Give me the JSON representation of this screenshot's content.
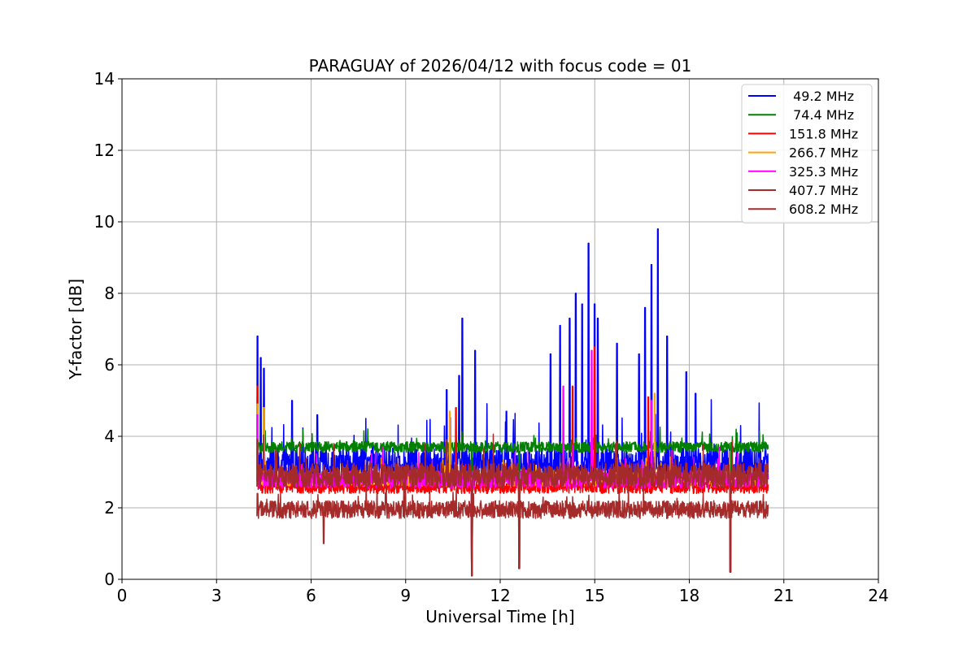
{
  "chart_data": {
    "type": "line",
    "title": "PARAGUAY of 2026/04/12 with focus code = 01",
    "xlabel": "Universal Time [h]",
    "ylabel": "Y-factor [dB]",
    "xlim": [
      0,
      24
    ],
    "ylim": [
      0,
      14
    ],
    "xticks": [
      "0",
      "3",
      "6",
      "9",
      "12",
      "15",
      "18",
      "21",
      "24"
    ],
    "yticks": [
      "0",
      "2",
      "4",
      "6",
      "8",
      "10",
      "12",
      "14"
    ],
    "grid": true,
    "legend_position": "top-right",
    "series": [
      {
        "name": " 49.2 MHz",
        "color": "#0000ff",
        "baseline": 3.2,
        "noise": 0.5,
        "spikes": [
          [
            4.3,
            6.8
          ],
          [
            4.4,
            6.2
          ],
          [
            4.5,
            5.9
          ],
          [
            5.4,
            5.0
          ],
          [
            6.2,
            4.6
          ],
          [
            10.3,
            5.3
          ],
          [
            10.7,
            5.7
          ],
          [
            10.8,
            7.3
          ],
          [
            11.2,
            6.4
          ],
          [
            12.2,
            4.7
          ],
          [
            13.6,
            6.3
          ],
          [
            13.9,
            7.1
          ],
          [
            14.2,
            7.3
          ],
          [
            14.4,
            8.0
          ],
          [
            14.6,
            7.7
          ],
          [
            14.8,
            9.4
          ],
          [
            15.0,
            7.7
          ],
          [
            15.1,
            7.3
          ],
          [
            15.7,
            6.6
          ],
          [
            16.4,
            6.3
          ],
          [
            16.6,
            7.6
          ],
          [
            16.8,
            8.8
          ],
          [
            17.0,
            9.8
          ],
          [
            17.3,
            6.8
          ],
          [
            17.9,
            5.8
          ],
          [
            18.2,
            5.2
          ]
        ],
        "dips": [
          [
            11.1,
            0.1
          ],
          [
            12.6,
            0.3
          ],
          [
            19.3,
            0.2
          ]
        ]
      },
      {
        "name": " 74.4 MHz",
        "color": "#008000",
        "baseline": 3.7,
        "noise": 0.15,
        "spikes": [
          [
            4.3,
            4.5
          ]
        ],
        "dips": [
          [
            11.1,
            0.1
          ],
          [
            12.6,
            0.3
          ],
          [
            19.3,
            0.2
          ]
        ]
      },
      {
        "name": "151.8 MHz",
        "color": "#ff0000",
        "baseline": 2.6,
        "noise": 0.2,
        "spikes": [
          [
            4.3,
            5.4
          ],
          [
            10.6,
            4.8
          ],
          [
            14.3,
            5.4
          ],
          [
            15.0,
            6.5
          ],
          [
            16.7,
            5.1
          ]
        ],
        "dips": [
          [
            11.1,
            0.1
          ],
          [
            12.6,
            0.3
          ],
          [
            19.3,
            0.2
          ]
        ]
      },
      {
        "name": "266.7 MHz",
        "color": "#ffa500",
        "baseline": 2.8,
        "noise": 0.2,
        "spikes": [
          [
            4.3,
            4.9
          ],
          [
            4.5,
            4.8
          ],
          [
            10.4,
            4.7
          ],
          [
            16.9,
            5.2
          ]
        ],
        "dips": [
          [
            11.1,
            0.1
          ],
          [
            12.6,
            0.3
          ],
          [
            19.3,
            0.2
          ]
        ]
      },
      {
        "name": "325.3 MHz",
        "color": "#ff00ff",
        "baseline": 2.8,
        "noise": 0.25,
        "spikes": [
          [
            4.3,
            4.6
          ],
          [
            14.0,
            5.4
          ],
          [
            14.9,
            6.4
          ],
          [
            16.8,
            5.0
          ]
        ],
        "dips": [
          [
            11.1,
            0.1
          ],
          [
            12.6,
            0.3
          ],
          [
            19.3,
            0.2
          ]
        ]
      },
      {
        "name": "407.7 MHz",
        "color": "#a52a2a",
        "baseline": 2.9,
        "noise": 0.35,
        "spikes": [
          [
            4.3,
            3.9
          ],
          [
            10.3,
            3.9
          ]
        ],
        "dips": [
          [
            11.1,
            0.1
          ],
          [
            12.6,
            0.3
          ],
          [
            19.3,
            0.2
          ]
        ]
      },
      {
        "name": "608.2 MHz",
        "color": "#a52a2a",
        "baseline": 1.95,
        "noise": 0.25,
        "spikes": [
          [
            4.3,
            2.4
          ]
        ],
        "dips": [
          [
            6.4,
            1.0
          ],
          [
            11.1,
            0.1
          ],
          [
            12.6,
            0.3
          ],
          [
            19.3,
            0.2
          ]
        ]
      }
    ],
    "data_range": [
      4.28,
      20.5
    ]
  }
}
